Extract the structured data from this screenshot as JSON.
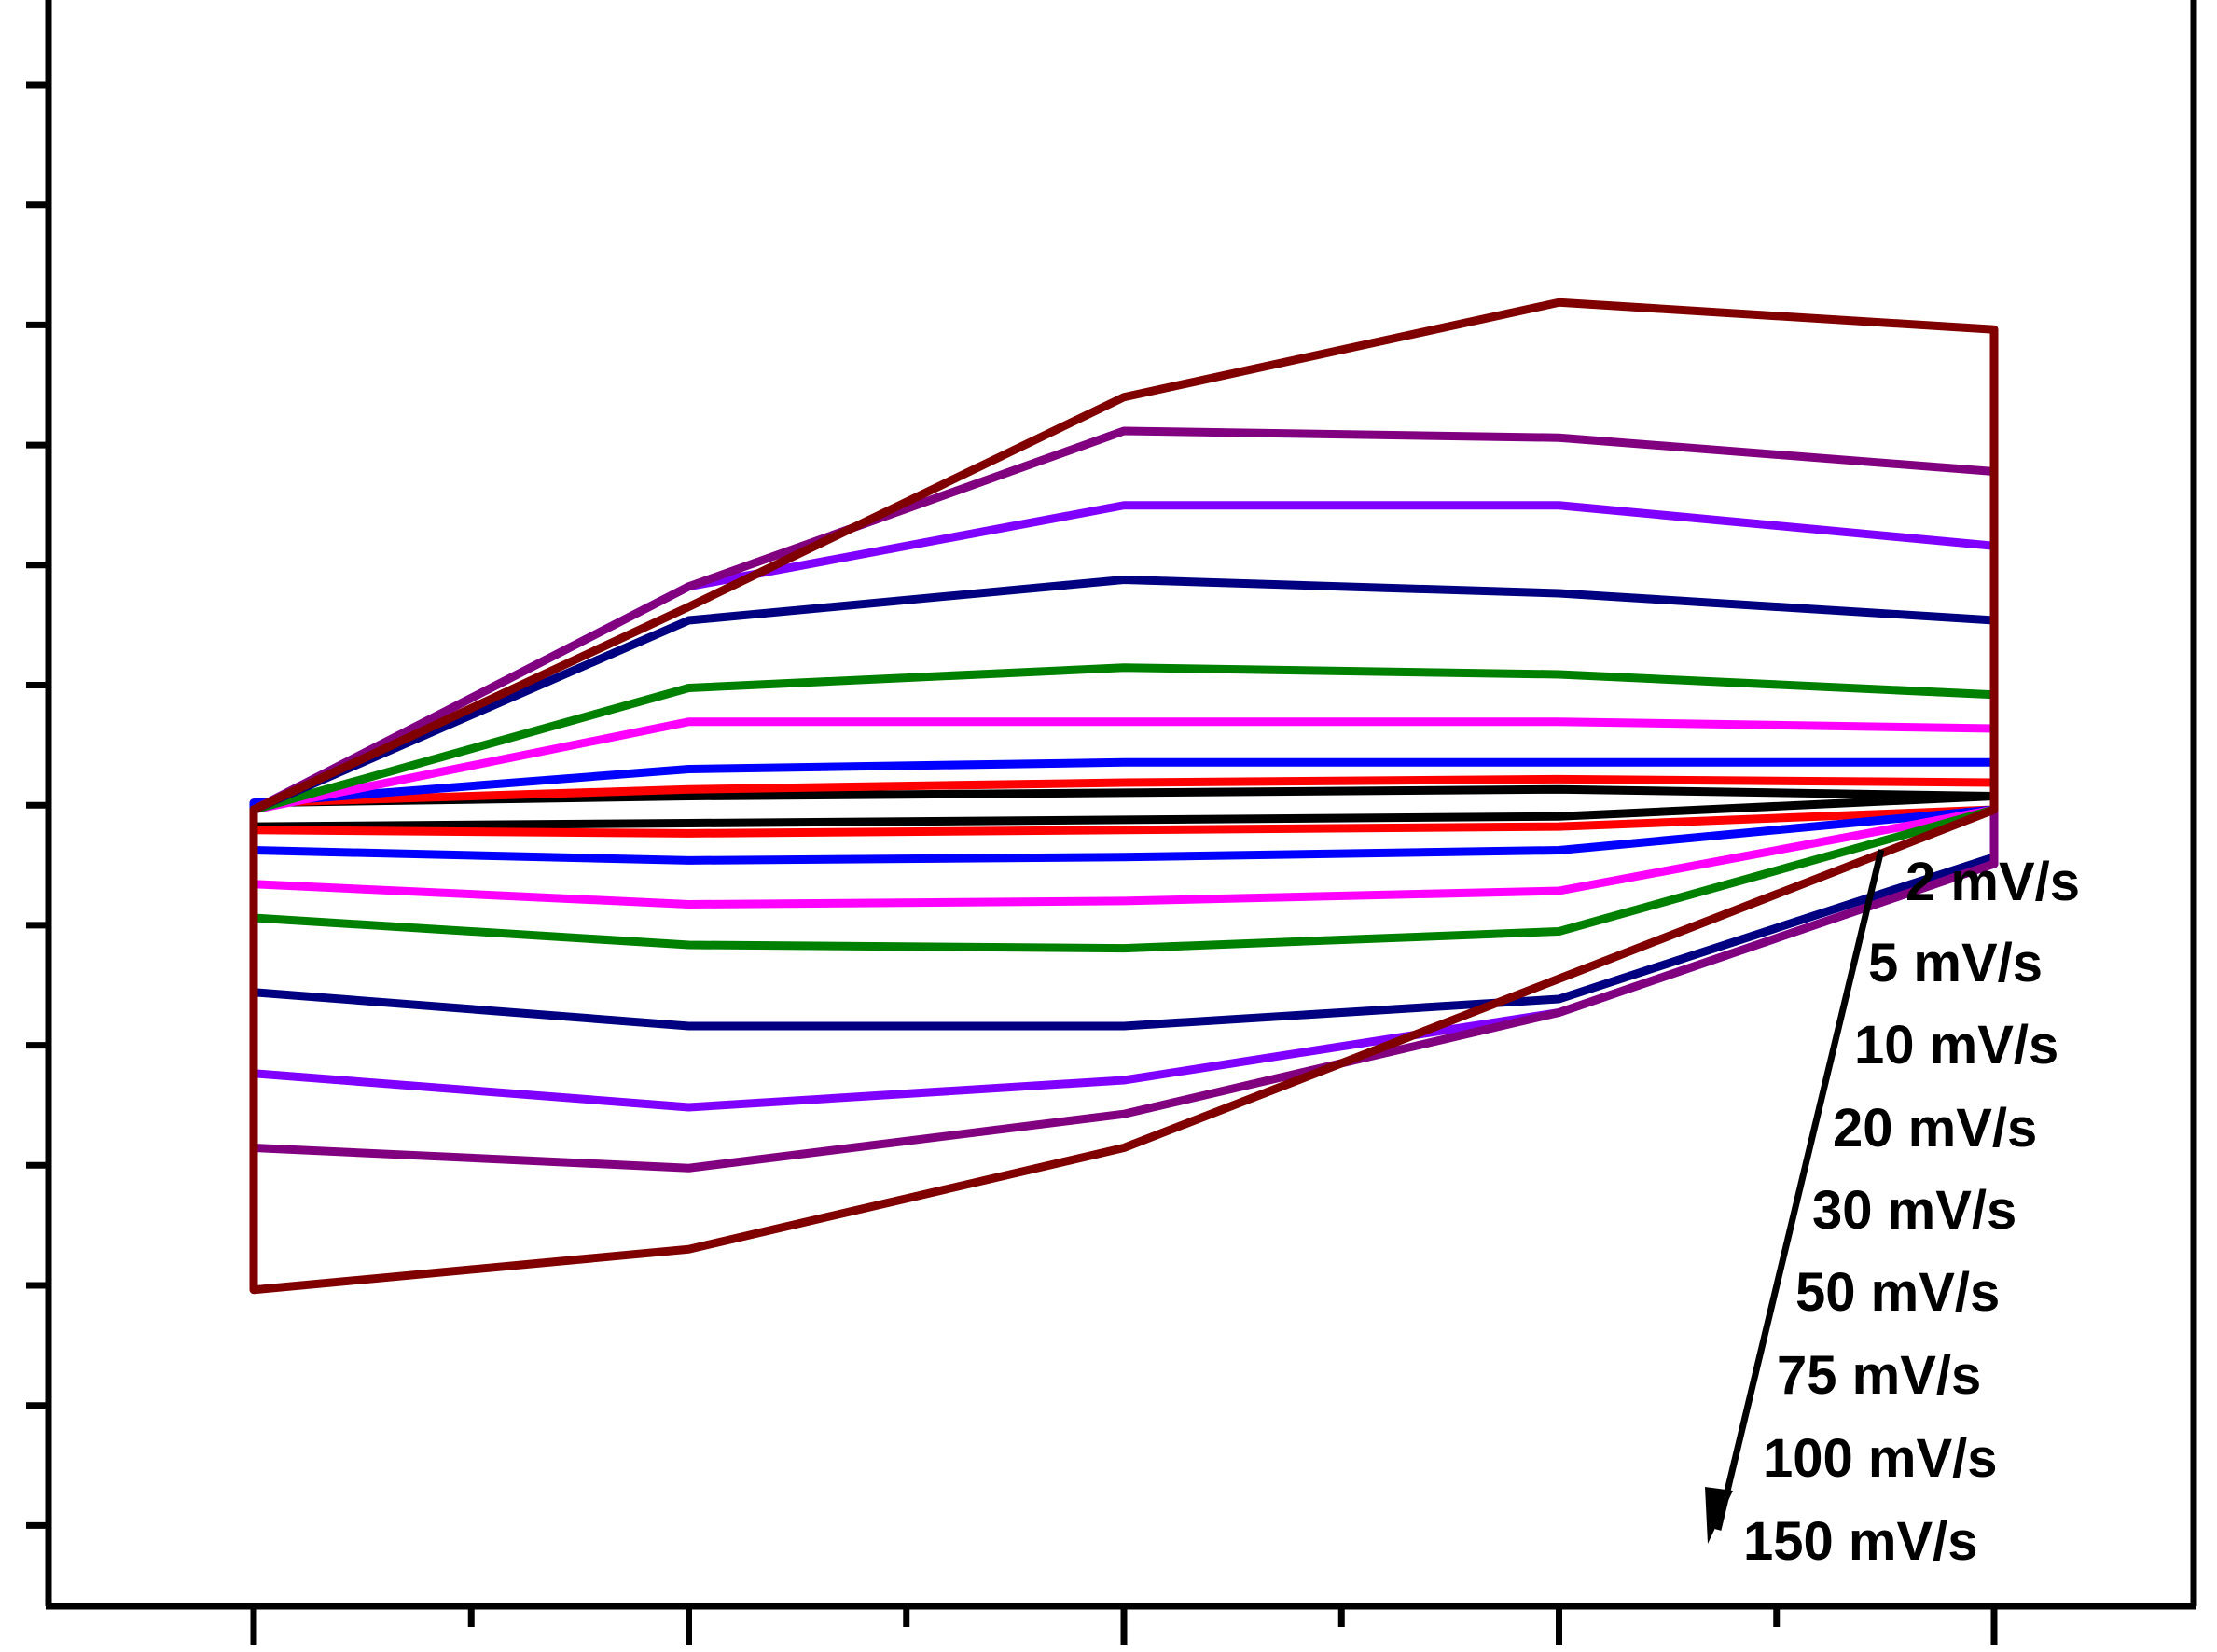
{
  "chart_data": {
    "type": "line",
    "title": "",
    "xlabel": "",
    "ylabel": "",
    "grid": false,
    "x_ticks_major": 9,
    "y_ticks": 13,
    "xlim": [
      0,
      1
    ],
    "ylim": [
      -1,
      1
    ],
    "legend": {
      "placement": "bottom-right",
      "arrow": "down",
      "entries": [
        "2 mV/s",
        "5 mV/s",
        "10 mV/s",
        "20 mV/s",
        "30 mV/s",
        "50 mV/s",
        "75 mV/s",
        "100 mV/s",
        "150 mV/s"
      ]
    },
    "series": [
      {
        "name": "2 mV/s",
        "color": "#000000",
        "v_right": 0.02,
        "upper": [
          0.01,
          0.02,
          0.025,
          0.03,
          0.02
        ],
        "lower": [
          -0.025,
          -0.02,
          -0.015,
          -0.01,
          0.02
        ]
      },
      {
        "name": "5 mV/s",
        "color": "#ff0000",
        "v_left": -0.03,
        "v_right": 0.04,
        "upper": [
          0.01,
          0.03,
          0.04,
          0.045,
          0.04
        ],
        "lower": [
          -0.03,
          -0.035,
          -0.03,
          -0.025,
          0.0
        ]
      },
      {
        "name": "10 mV/s",
        "color": "#0000ff",
        "v_left": -0.06,
        "v_right": 0.07,
        "upper": [
          0.01,
          0.06,
          0.07,
          0.07,
          0.07
        ],
        "lower": [
          -0.06,
          -0.075,
          -0.07,
          -0.06,
          0.0
        ]
      },
      {
        "name": "20 mV/s",
        "color": "#ff00ff",
        "v_left": -0.11,
        "v_right": 0.12,
        "upper": [
          0.0,
          0.13,
          0.13,
          0.13,
          0.12
        ],
        "lower": [
          -0.11,
          -0.14,
          -0.135,
          -0.12,
          0.0
        ]
      },
      {
        "name": "30 mV/s",
        "color": "#008000",
        "v_left": -0.16,
        "v_right": 0.17,
        "upper": [
          0.0,
          0.18,
          0.21,
          0.2,
          0.17
        ],
        "lower": [
          -0.16,
          -0.2,
          -0.205,
          -0.18,
          0.0
        ]
      },
      {
        "name": "50 mV/s",
        "color": "#000080",
        "v_left": -0.27,
        "v_right": 0.28,
        "upper": [
          0.0,
          0.28,
          0.34,
          0.32,
          0.28
        ],
        "lower": [
          -0.27,
          -0.32,
          -0.32,
          -0.28,
          -0.07
        ]
      },
      {
        "name": "75 mV/s",
        "color": "#8000ff",
        "v_left": -0.39,
        "v_right": 0.39,
        "upper": [
          0.0,
          0.33,
          0.45,
          0.45,
          0.39
        ],
        "lower": [
          -0.39,
          -0.44,
          -0.4,
          -0.3,
          -0.08
        ]
      },
      {
        "name": "100 mV/s",
        "color": "#800080",
        "v_left": -0.5,
        "v_right": 0.5,
        "upper": [
          0.0,
          0.33,
          0.56,
          0.55,
          0.5
        ],
        "lower": [
          -0.5,
          -0.53,
          -0.45,
          -0.3,
          -0.08
        ]
      },
      {
        "name": "150 mV/s",
        "color": "#800000",
        "v_left": -0.71,
        "v_right": 0.71,
        "upper": [
          0.0,
          0.3,
          0.61,
          0.75,
          0.71
        ],
        "lower": [
          -0.71,
          -0.65,
          -0.5,
          -0.25,
          0.0
        ]
      }
    ]
  }
}
